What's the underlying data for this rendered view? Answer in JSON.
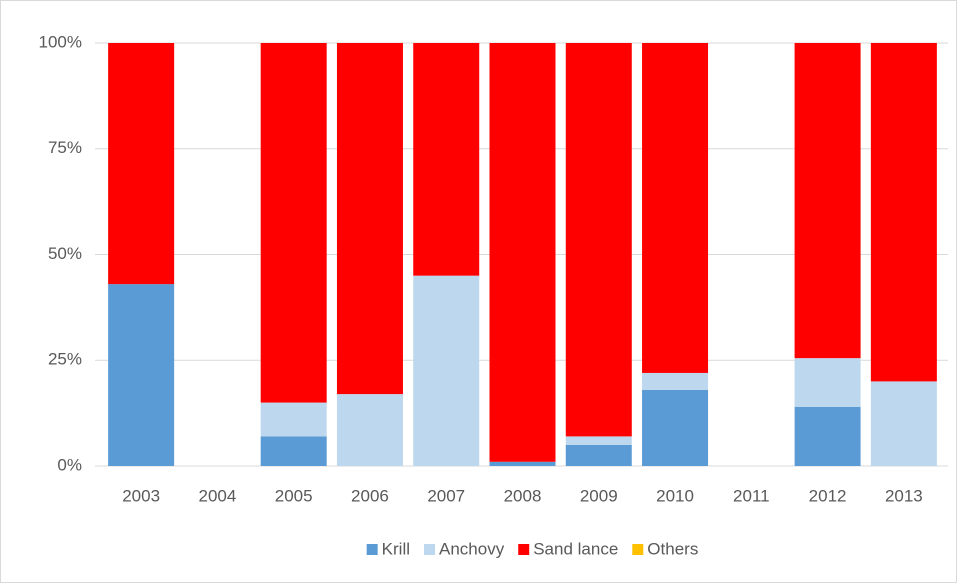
{
  "chart_data": {
    "type": "stacked-bar-100",
    "categories": [
      "2003",
      "2004",
      "2005",
      "2006",
      "2007",
      "2008",
      "2009",
      "2010",
      "2011",
      "2012",
      "2013"
    ],
    "series": [
      {
        "name": "Krill",
        "color": "#5b9bd5",
        "values": [
          43,
          0,
          7,
          0,
          0,
          1,
          5,
          18,
          0,
          14,
          0
        ]
      },
      {
        "name": "Anchovy",
        "color": "#bdd7ee",
        "values": [
          0,
          0,
          8,
          17,
          45,
          0,
          2,
          4,
          0,
          11.5,
          20
        ]
      },
      {
        "name": "Sand lance",
        "color": "#ff0000",
        "values": [
          57,
          0,
          85,
          83,
          55,
          99,
          93,
          78,
          0,
          74.5,
          80
        ]
      },
      {
        "name": "Others",
        "color": "#ffc000",
        "values": [
          0,
          0,
          0,
          0,
          0,
          0,
          0,
          0,
          0,
          0,
          0
        ]
      }
    ],
    "ylim": [
      0,
      100
    ],
    "yticks": [
      {
        "value": 0,
        "label": "0%"
      },
      {
        "value": 25,
        "label": "25%"
      },
      {
        "value": 50,
        "label": "50%"
      },
      {
        "value": 75,
        "label": "75%"
      },
      {
        "value": 100,
        "label": "100%"
      }
    ],
    "grid": true,
    "legend": "bottom"
  }
}
